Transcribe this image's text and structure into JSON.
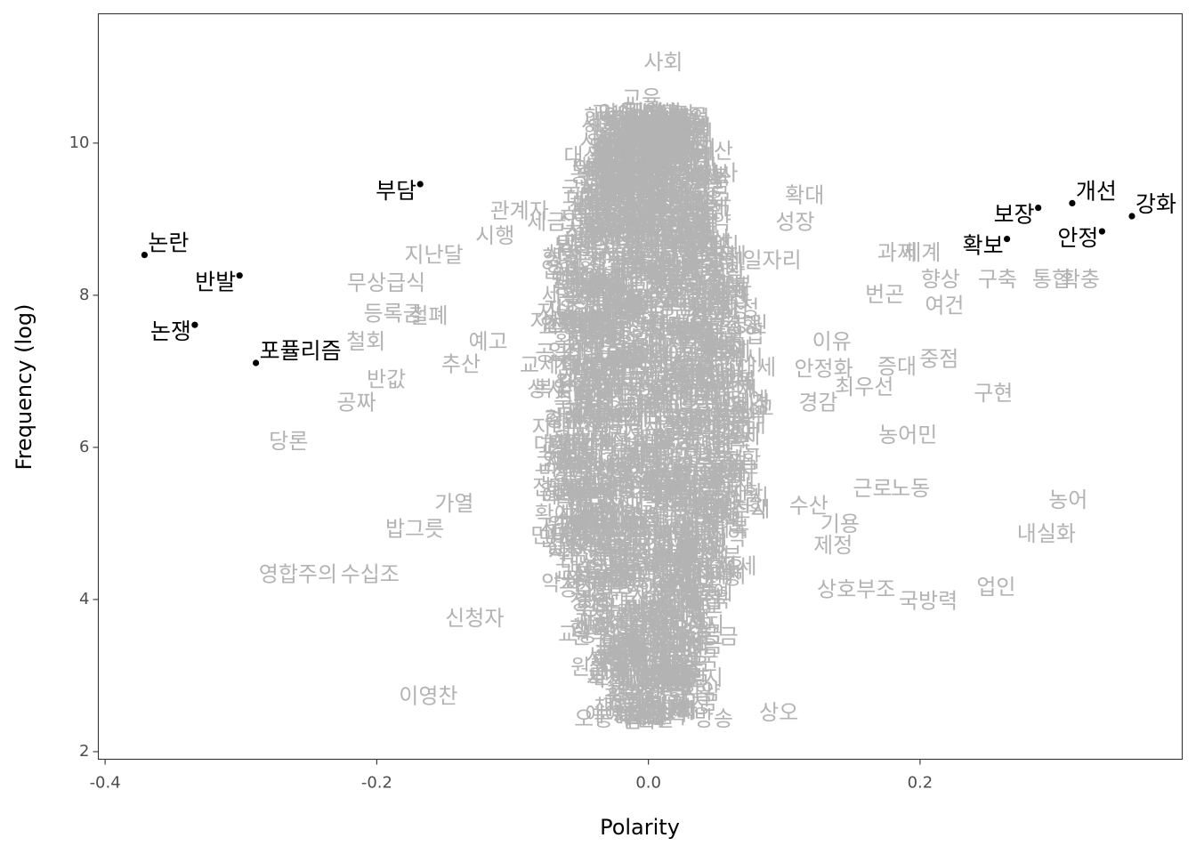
{
  "chart_data": {
    "type": "scatter",
    "xlabel": "Polarity",
    "ylabel": "Frequency (log)",
    "xlim": [
      -0.405,
      0.393
    ],
    "ylim": [
      1.9,
      11.7
    ],
    "x_ticks": [
      -0.4,
      -0.2,
      0.0,
      0.2
    ],
    "x_tick_labels": [
      "-0.4",
      "-0.2",
      "0.0",
      "0.2"
    ],
    "y_ticks": [
      2,
      4,
      6,
      8,
      10
    ],
    "y_tick_labels": [
      "2",
      "4",
      "6",
      "8",
      "10"
    ],
    "grid": false,
    "colors": {
      "background_words": "#b3b3b3",
      "highlight": "#000000",
      "border": "#333333"
    },
    "highlighted": [
      {
        "word": "논란",
        "x": -0.371,
        "y": 8.53,
        "label_pos": "top-right"
      },
      {
        "word": "반발",
        "x": -0.301,
        "y": 8.26,
        "label_pos": "bottom-left"
      },
      {
        "word": "논쟁",
        "x": -0.334,
        "y": 7.61,
        "label_pos": "bottom-left"
      },
      {
        "word": "포퓰리즘",
        "x": -0.289,
        "y": 7.11,
        "label_pos": "top-right"
      },
      {
        "word": "부담",
        "x": -0.168,
        "y": 9.46,
        "label_pos": "bottom-left"
      },
      {
        "word": "개선",
        "x": 0.312,
        "y": 9.21,
        "label_pos": "top-right"
      },
      {
        "word": "강화",
        "x": 0.356,
        "y": 9.04,
        "label_pos": "top-right"
      },
      {
        "word": "보장",
        "x": 0.287,
        "y": 9.15,
        "label_pos": "bottom-left"
      },
      {
        "word": "확보",
        "x": 0.264,
        "y": 8.74,
        "label_pos": "bottom-left"
      },
      {
        "word": "안정",
        "x": 0.334,
        "y": 8.84,
        "label_pos": "bottom-left"
      }
    ],
    "background_words": [
      {
        "word": "사회",
        "x": 0.011,
        "y": 11.05
      },
      {
        "word": "확대",
        "x": 0.115,
        "y": 9.3
      },
      {
        "word": "관계자",
        "x": -0.095,
        "y": 9.1
      },
      {
        "word": "시행",
        "x": -0.113,
        "y": 8.77
      },
      {
        "word": "예산",
        "x": 0.048,
        "y": 9.88
      },
      {
        "word": "과제",
        "x": 0.183,
        "y": 8.55
      },
      {
        "word": "제계",
        "x": 0.201,
        "y": 8.55
      },
      {
        "word": "향상",
        "x": 0.215,
        "y": 8.2
      },
      {
        "word": "구축",
        "x": 0.257,
        "y": 8.2
      },
      {
        "word": "통합",
        "x": 0.297,
        "y": 8.2
      },
      {
        "word": "확충",
        "x": 0.318,
        "y": 8.2
      },
      {
        "word": "여건",
        "x": 0.218,
        "y": 7.85
      },
      {
        "word": "번곤",
        "x": 0.174,
        "y": 8.0
      },
      {
        "word": "지난달",
        "x": -0.158,
        "y": 8.52
      },
      {
        "word": "무상급식",
        "x": -0.193,
        "y": 8.15
      },
      {
        "word": "등록금",
        "x": -0.188,
        "y": 7.75
      },
      {
        "word": "철폐",
        "x": -0.162,
        "y": 7.72
      },
      {
        "word": "철회",
        "x": -0.208,
        "y": 7.38
      },
      {
        "word": "예고",
        "x": -0.118,
        "y": 7.38
      },
      {
        "word": "추산",
        "x": -0.138,
        "y": 7.08
      },
      {
        "word": "반값",
        "x": -0.193,
        "y": 6.88
      },
      {
        "word": "공짜",
        "x": -0.215,
        "y": 6.58
      },
      {
        "word": "당론",
        "x": -0.265,
        "y": 6.07
      },
      {
        "word": "증대",
        "x": 0.183,
        "y": 7.05
      },
      {
        "word": "중점",
        "x": 0.214,
        "y": 7.15
      },
      {
        "word": "구현",
        "x": 0.254,
        "y": 6.7
      },
      {
        "word": "농어민",
        "x": 0.191,
        "y": 6.15
      },
      {
        "word": "근로",
        "x": 0.165,
        "y": 5.45
      },
      {
        "word": "노동",
        "x": 0.193,
        "y": 5.45
      },
      {
        "word": "농어",
        "x": 0.309,
        "y": 5.3
      },
      {
        "word": "내실화",
        "x": 0.293,
        "y": 4.85
      },
      {
        "word": "업인",
        "x": 0.256,
        "y": 4.15
      },
      {
        "word": "국방력",
        "x": 0.206,
        "y": 3.97
      },
      {
        "word": "상호부조",
        "x": 0.153,
        "y": 4.12
      },
      {
        "word": "가열",
        "x": -0.143,
        "y": 5.25
      },
      {
        "word": "밥그릇",
        "x": -0.172,
        "y": 4.92
      },
      {
        "word": "영합주의",
        "x": -0.258,
        "y": 4.32
      },
      {
        "word": "수십조",
        "x": -0.205,
        "y": 4.32
      },
      {
        "word": "신청자",
        "x": -0.128,
        "y": 3.74
      },
      {
        "word": "이영찬",
        "x": -0.162,
        "y": 2.72
      },
      {
        "word": "오동혜",
        "x": -0.033,
        "y": 2.42
      },
      {
        "word": "반말",
        "x": 0.005,
        "y": 2.42
      },
      {
        "word": "방송",
        "x": 0.048,
        "y": 2.42
      },
      {
        "word": "상오",
        "x": 0.096,
        "y": 2.5
      },
      {
        "word": "이유",
        "x": 0.135,
        "y": 7.38
      },
      {
        "word": "최우선",
        "x": 0.159,
        "y": 6.78
      },
      {
        "word": "경감",
        "x": 0.125,
        "y": 6.58
      },
      {
        "word": "수산",
        "x": 0.118,
        "y": 5.22
      },
      {
        "word": "기용",
        "x": 0.141,
        "y": 4.98
      },
      {
        "word": "제정",
        "x": 0.136,
        "y": 4.7
      },
      {
        "word": "안정화",
        "x": 0.129,
        "y": 7.02
      },
      {
        "word": "대상",
        "x": -0.048,
        "y": 9.82
      },
      {
        "word": "교육",
        "x": -0.005,
        "y": 10.58
      },
      {
        "word": "지원",
        "x": -0.021,
        "y": 10.22
      },
      {
        "word": "세금",
        "x": -0.075,
        "y": 8.95
      },
      {
        "word": "성장",
        "x": 0.108,
        "y": 8.95
      },
      {
        "word": "일자리",
        "x": 0.091,
        "y": 8.45
      },
      {
        "word": "공약",
        "x": -0.052,
        "y": 7.95
      }
    ]
  }
}
